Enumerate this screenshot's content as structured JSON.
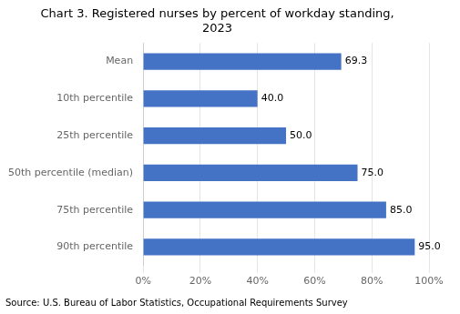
{
  "chart_data": {
    "type": "bar",
    "orientation": "horizontal",
    "title": "Chart 3. Registered nurses by percent of workday standing,\n2023",
    "categories": [
      "Mean",
      "10th percentile",
      "25th percentile",
      "50th percentile (median)",
      "75th percentile",
      "90th percentile"
    ],
    "values": [
      69.3,
      40.0,
      50.0,
      75.0,
      85.0,
      95.0
    ],
    "value_labels": [
      "69.3",
      "40.0",
      "50.0",
      "75.0",
      "85.0",
      "95.0"
    ],
    "data_labels": true,
    "color": "#4472C4",
    "xlim": [
      0,
      100
    ],
    "xticks": [
      {
        "value": 0,
        "label": "0%"
      },
      {
        "value": 20,
        "label": "20%"
      },
      {
        "value": 40,
        "label": "40%"
      },
      {
        "value": 60,
        "label": "60%"
      },
      {
        "value": 80,
        "label": "80%"
      },
      {
        "value": 100,
        "label": "100%"
      }
    ],
    "grid": true,
    "annotations": [
      "Source: U.S. Bureau of Labor Statistics, Occupational Requirements Survey"
    ]
  }
}
